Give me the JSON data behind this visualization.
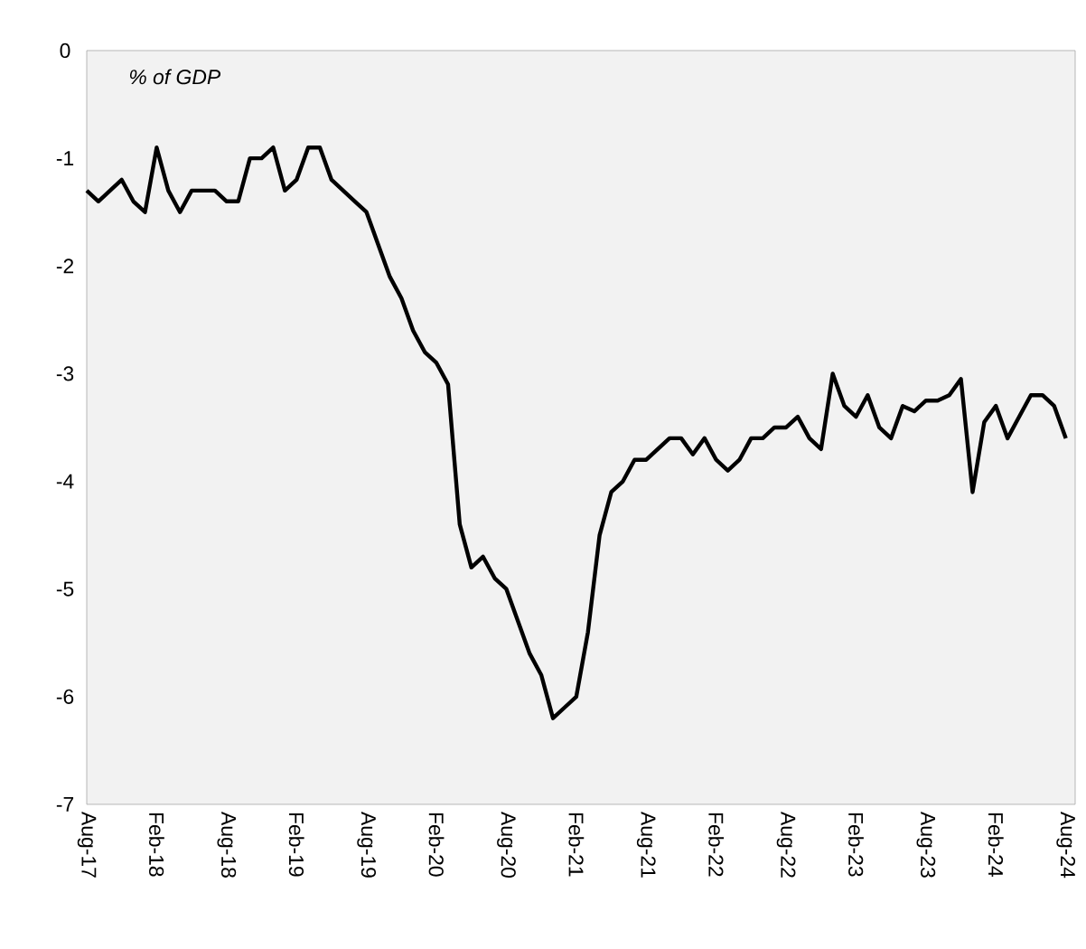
{
  "chart_data": {
    "type": "line",
    "categories": [
      "Aug-17",
      null,
      null,
      null,
      null,
      null,
      "Feb-18",
      null,
      null,
      null,
      null,
      null,
      "Aug-18",
      null,
      null,
      null,
      null,
      null,
      "Feb-19",
      null,
      null,
      null,
      null,
      null,
      "Aug-19",
      null,
      null,
      null,
      null,
      null,
      "Feb-20",
      null,
      null,
      null,
      null,
      null,
      "Aug-20",
      null,
      null,
      null,
      null,
      null,
      "Feb-21",
      null,
      null,
      null,
      null,
      null,
      "Aug-21",
      null,
      null,
      null,
      null,
      null,
      "Feb-22",
      null,
      null,
      null,
      null,
      null,
      "Aug-22",
      null,
      null,
      null,
      null,
      null,
      "Feb-23",
      null,
      null,
      null,
      null,
      null,
      "Aug-23",
      null,
      null,
      null,
      null,
      null,
      "Feb-24",
      null,
      null,
      null,
      null,
      null,
      "Aug-24"
    ],
    "series": [
      {
        "color": "#000000",
        "values": [
          -1.3,
          -1.4,
          -1.3,
          -1.2,
          -1.4,
          -1.5,
          -0.9,
          -1.3,
          -1.5,
          -1.3,
          -1.3,
          -1.3,
          -1.4,
          -1.4,
          -1.0,
          -1.0,
          -0.9,
          -1.3,
          -1.2,
          -0.9,
          -0.9,
          -1.2,
          -1.3,
          -1.4,
          -1.5,
          -1.8,
          -2.1,
          -2.3,
          -2.6,
          -2.8,
          -2.9,
          -3.1,
          -4.4,
          -4.8,
          -4.7,
          -4.9,
          -5.0,
          -5.3,
          -5.6,
          -5.8,
          -6.2,
          -6.1,
          -6.0,
          -5.4,
          -4.5,
          -4.1,
          -4.0,
          -3.8,
          -3.8,
          -3.7,
          -3.6,
          -3.6,
          -3.75,
          -3.6,
          -3.8,
          -3.9,
          -3.8,
          -3.6,
          -3.6,
          -3.5,
          -3.5,
          -3.4,
          -3.6,
          -3.7,
          -3.0,
          -3.3,
          -3.4,
          -3.2,
          -3.5,
          -3.6,
          -3.3,
          -3.35,
          -3.25,
          -3.25,
          -3.2,
          -3.05,
          -4.1,
          -3.45,
          -3.3,
          -3.6,
          -3.4,
          -3.2,
          -3.2,
          -3.3,
          -3.6
        ]
      }
    ],
    "ylim": [
      -7,
      0
    ],
    "yticks": [
      -7,
      -6,
      -5,
      -4,
      -3,
      -2,
      -1,
      0
    ],
    "annotations": [
      "% of GDP"
    ],
    "grid": false,
    "marker": "none",
    "line_style": "solid"
  }
}
